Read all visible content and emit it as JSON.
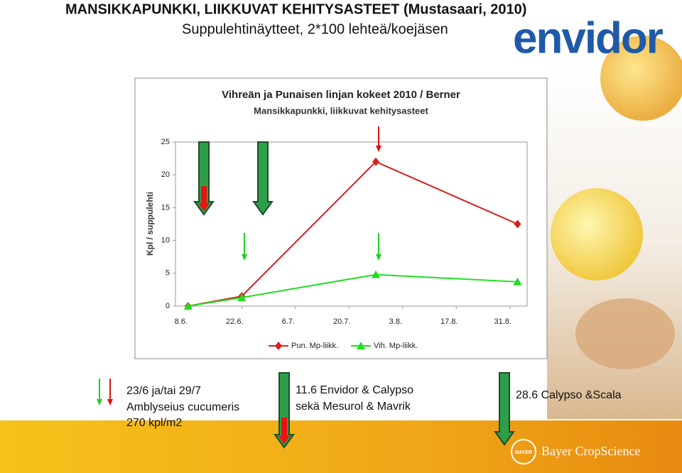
{
  "slide": {
    "title": "MANSIKKAPUNKKI, LIIKKUVAT KEHITYSASTEET (Mustasaari, 2010)",
    "subtitle": "Suppulehtinäytteet, 2*100 lehteä/koejäsen",
    "logo": "envidor",
    "notes": [
      [
        "23/6 ja/tai 29/7",
        "Amblyseius cucumeris",
        "270 kpl/m2"
      ],
      [
        "11.6 Envidor & Calypso",
        "sekä Mesurol & Mavrik"
      ],
      [
        "28.6 Calypso &Scala"
      ]
    ],
    "bayer_badge": "BAYER",
    "bayer_brand": "Bayer CropScience"
  },
  "chart_data": {
    "type": "line",
    "title": "Vihreän ja Punaisen linjan kokeet 2010 / Berner",
    "subtitle": "Mansikkapunkki, liikkuvat kehitysasteet",
    "y_label": "Kpl / suppulehti",
    "x": [
      0,
      14,
      49,
      86
    ],
    "xlim": [
      -3.3,
      88.5
    ],
    "xticks": [
      {
        "value": 0,
        "label": "8.6."
      },
      {
        "value": 14,
        "label": "22.6."
      },
      {
        "value": 28,
        "label": "6.7."
      },
      {
        "value": 42,
        "label": "20.7."
      },
      {
        "value": 56,
        "label": "3.8."
      },
      {
        "value": 70,
        "label": "17.8."
      },
      {
        "value": 84,
        "label": "31.8."
      }
    ],
    "ylim": [
      0,
      25
    ],
    "yticks": [
      0,
      5,
      10,
      15,
      20,
      25
    ],
    "grid": false,
    "legend": "bottom",
    "series": [
      {
        "name": "Pun. Mp-liikk.",
        "color": "#d42020",
        "marker": "diamond",
        "values": [
          0,
          1.5,
          22,
          12.5
        ]
      },
      {
        "name": "Vih. Mp-liikk.",
        "color": "#22dd22",
        "marker": "triangle",
        "values": [
          0,
          1.3,
          4.8,
          3.7
        ]
      }
    ]
  }
}
